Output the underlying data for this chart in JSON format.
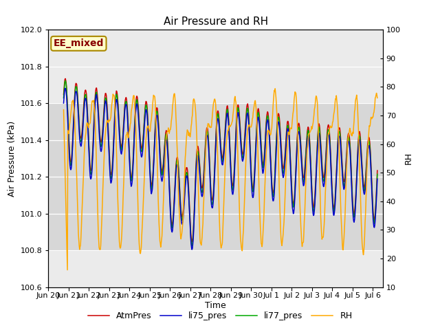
{
  "title": "Air Pressure and RH",
  "xlabel": "Time",
  "ylabel_left": "Air Pressure (kPa)",
  "ylabel_right": "RH",
  "annotation_text": "EE_mixed",
  "ylim_left": [
    100.6,
    102.0
  ],
  "ylim_right": [
    10,
    100
  ],
  "yticks_left": [
    100.6,
    100.8,
    101.0,
    101.2,
    101.4,
    101.6,
    101.8,
    102.0
  ],
  "yticks_right": [
    10,
    20,
    30,
    40,
    50,
    60,
    70,
    80,
    90,
    100
  ],
  "colors": {
    "AtmPres": "#cc0000",
    "li75_pres": "#0000cc",
    "li77_pres": "#00aa00",
    "RH": "#ffaa00"
  },
  "legend_labels": [
    "AtmPres",
    "li75_pres",
    "li77_pres",
    "RH"
  ],
  "plot_bg": "#ebebeb",
  "annotation_bg": "#ffffcc",
  "annotation_border": "#aa8800",
  "annotation_text_color": "#880000",
  "title_fontsize": 11,
  "axis_fontsize": 9,
  "tick_fontsize": 8,
  "legend_fontsize": 9,
  "annotation_fontsize": 10,
  "linewidth": 1.1,
  "gray_band_low": 100.8,
  "gray_band_high": 101.6
}
